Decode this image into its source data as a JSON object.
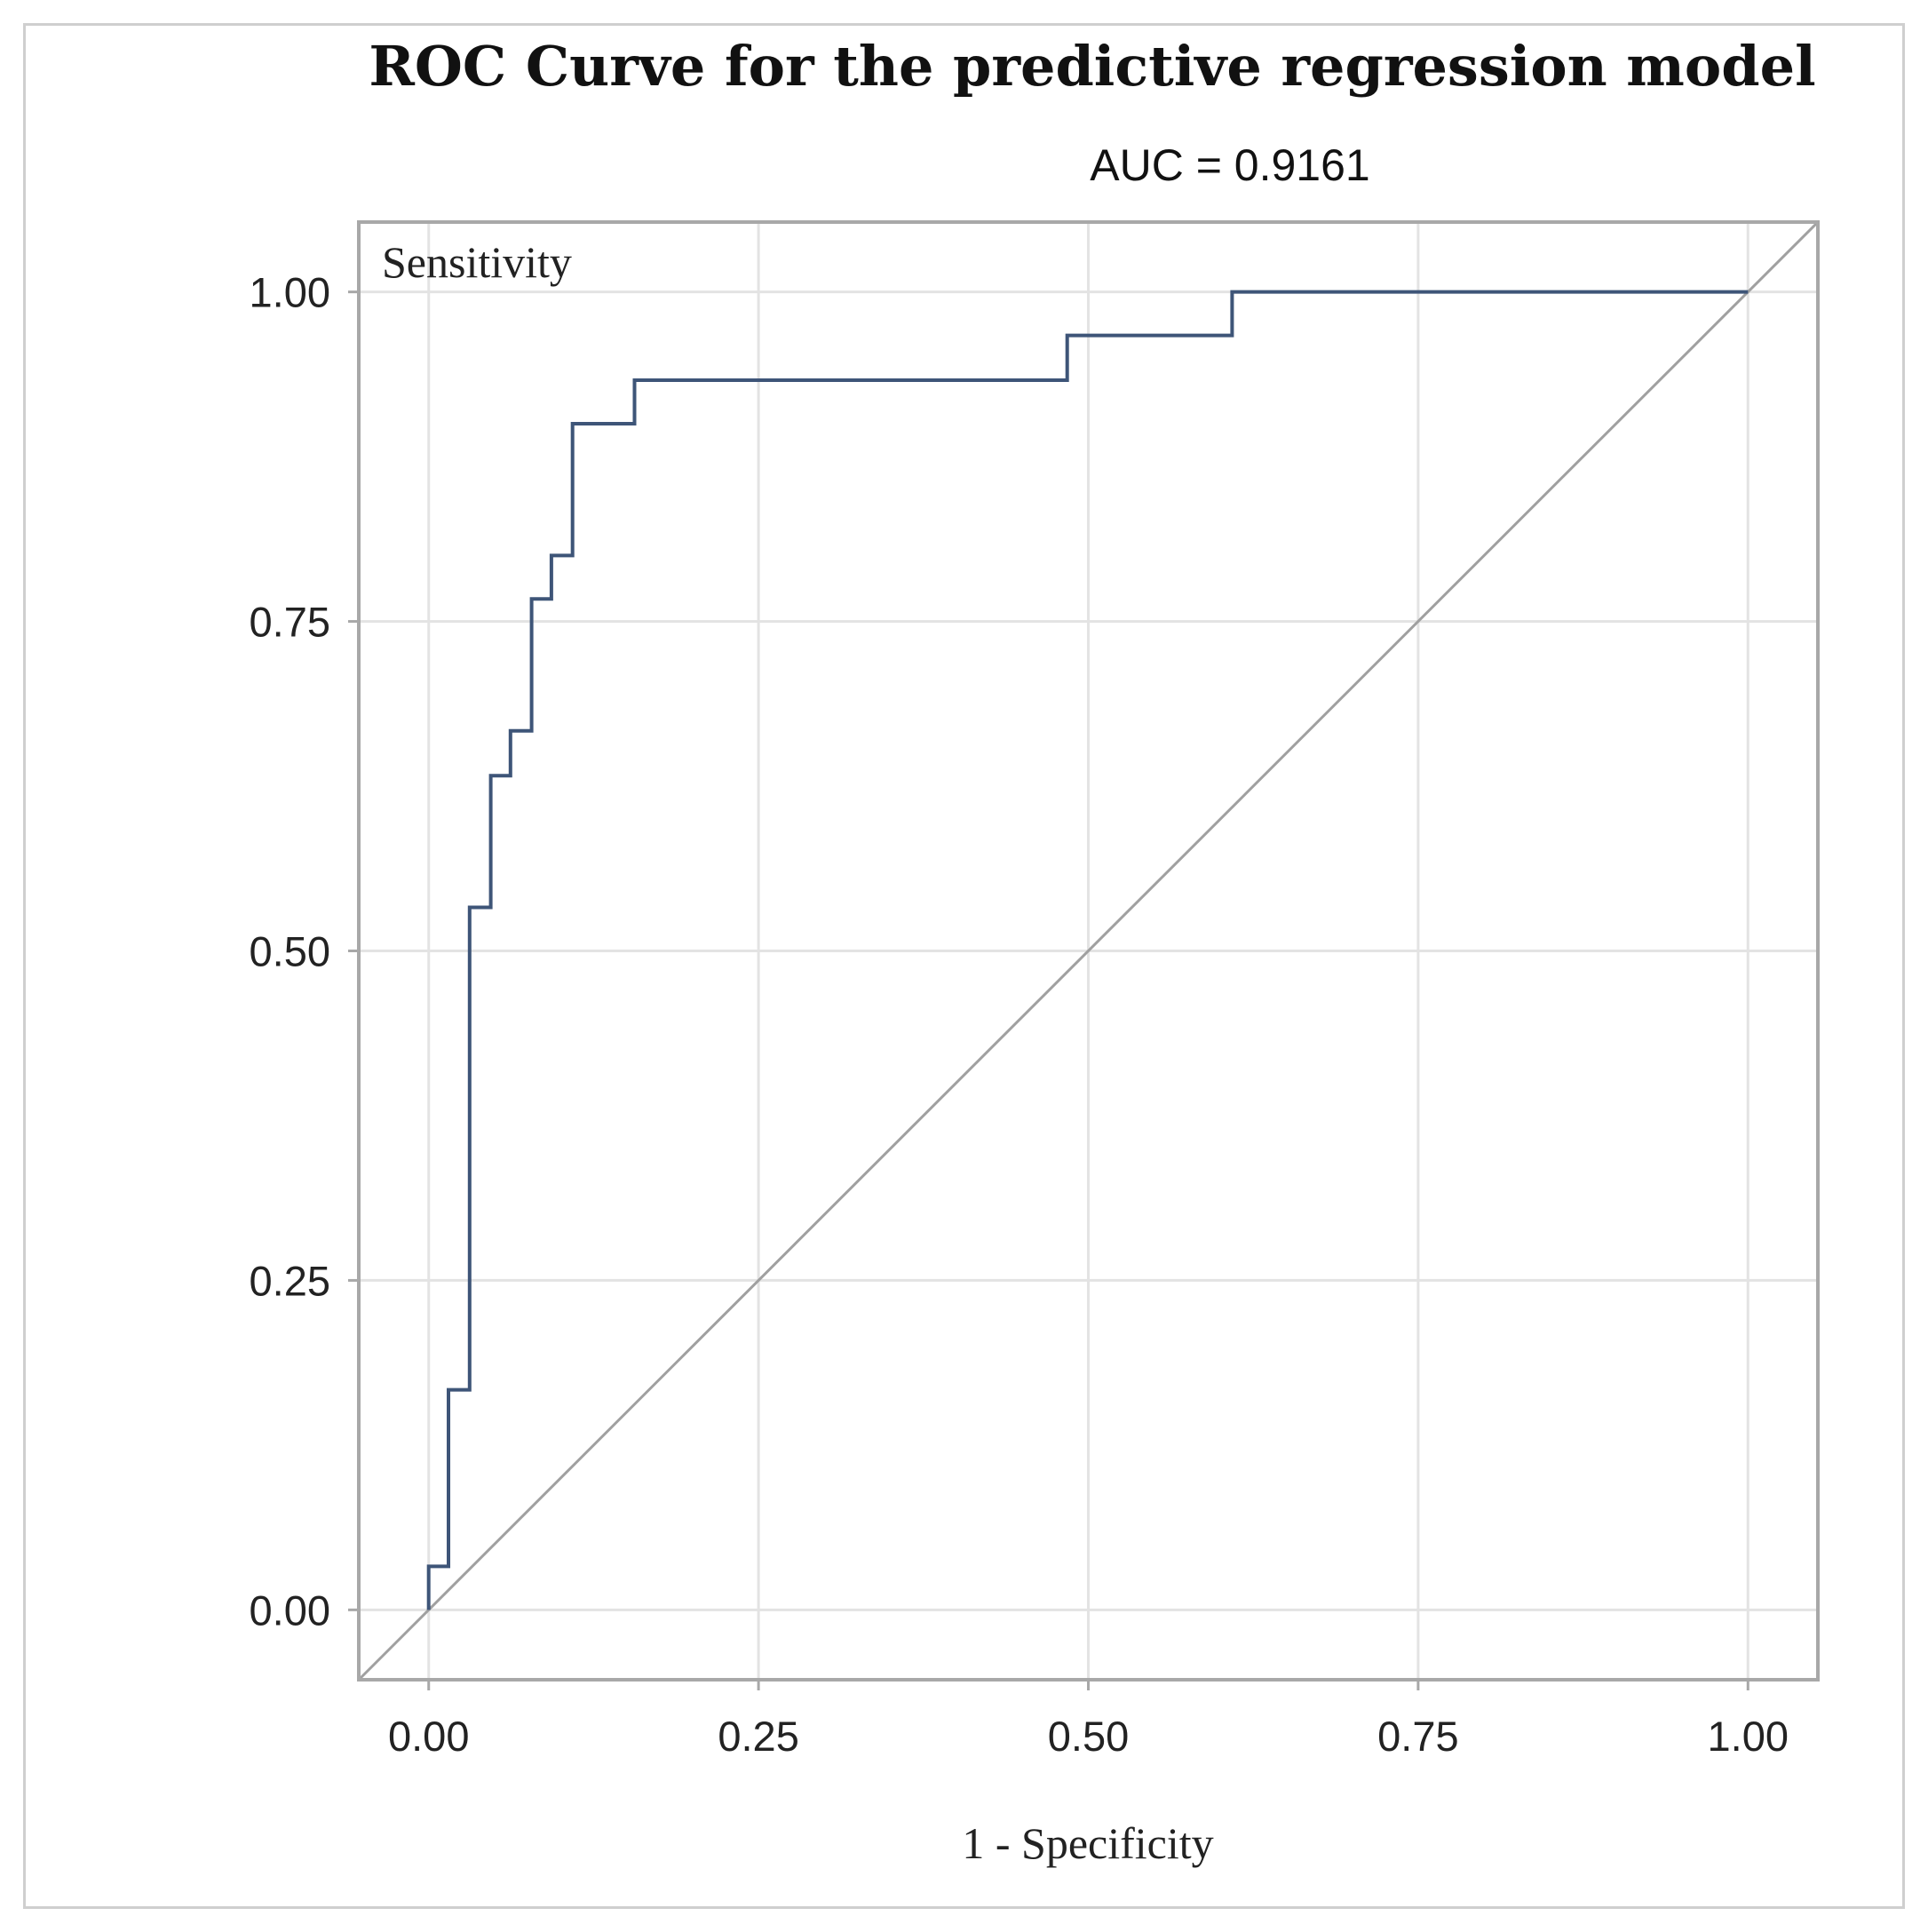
{
  "chart_data": {
    "type": "line",
    "title": "ROC Curve for the predictive regression model",
    "subtitle": "AUC  = 0.9161",
    "xlabel": "1 - Specificity",
    "ylabel": "Sensitivity",
    "xlim": [
      -0.053,
      1.053
    ],
    "ylim": [
      -0.053,
      1.053
    ],
    "x_ticks": [
      0,
      0.25,
      0.5,
      0.75,
      1
    ],
    "x_tick_labels": [
      "0.00",
      "0.25",
      "0.50",
      "0.75",
      "1.00"
    ],
    "y_ticks": [
      0,
      0.25,
      0.5,
      0.75,
      1
    ],
    "y_tick_labels": [
      "0.00",
      "0.25",
      "0.50",
      "0.75",
      "1.00"
    ],
    "grid": true,
    "series": [
      {
        "name": "ROC",
        "color": "#3e5578",
        "x": [
          0,
          0,
          0.015,
          0.015,
          0.031,
          0.031,
          0.047,
          0.047,
          0.062,
          0.062,
          0.078,
          0.078,
          0.093,
          0.093,
          0.109,
          0.109,
          0.156,
          0.156,
          0.484,
          0.484,
          0.609,
          0.609,
          1
        ],
        "y": [
          0,
          0.033,
          0.033,
          0.167,
          0.167,
          0.533,
          0.533,
          0.633,
          0.633,
          0.667,
          0.667,
          0.767,
          0.767,
          0.8,
          0.8,
          0.9,
          0.9,
          0.933,
          0.933,
          0.967,
          0.967,
          1,
          1
        ]
      },
      {
        "name": "Reference",
        "color": "#a0a0a0",
        "x": [
          -0.053,
          1.053
        ],
        "y": [
          -0.053,
          1.053
        ]
      }
    ]
  }
}
